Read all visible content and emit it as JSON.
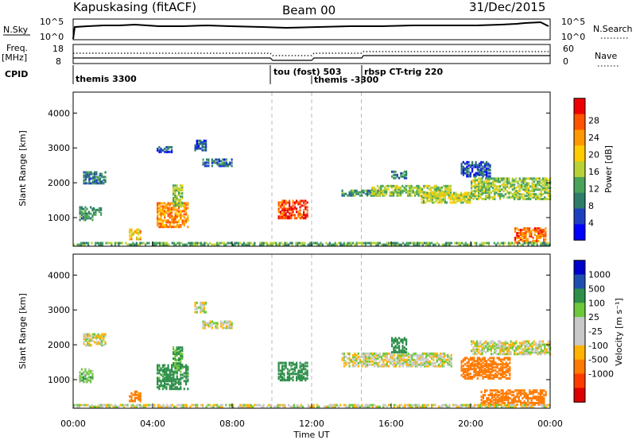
{
  "header": {
    "station": "Kapuskasing (fitACF)",
    "beam": "Beam 00",
    "date": "31/Dec/2015"
  },
  "panel_labels": {
    "nsky": "N.Sky",
    "nsearch": "N.Search",
    "freq_top": "Freq.",
    "freq_unit": "[MHz]",
    "nave": "Nave",
    "cpid": "CPID"
  },
  "top_axes": {
    "nsky_left_ticks": [
      "10^5",
      "10^0"
    ],
    "nsearch_right_ticks": [
      "10^5",
      "10^0"
    ],
    "freq_left_ticks": [
      "18",
      "8"
    ],
    "nave_right_ticks": [
      "60",
      "0"
    ]
  },
  "cpid_segments": [
    {
      "label": "themis 3300",
      "start_hour": 0.0
    },
    {
      "label": "tou (fost) 503",
      "start_hour": 10.0
    },
    {
      "label": "themis -3300",
      "start_hour": 12.0
    },
    {
      "label": "rbsp CT-trig 220",
      "start_hour": 14.5
    }
  ],
  "colors": {
    "power_scale": [
      "#0000ff",
      "#1e3fbf",
      "#2e7d6a",
      "#4aa35a",
      "#b8d236",
      "#ffcc00",
      "#ff9900",
      "#ff5500",
      "#ee0000"
    ],
    "velocity_scale": [
      "#0000cc",
      "#1e4fb0",
      "#2e8f4a",
      "#6cc83a",
      "#c8c8c8",
      "#c8c8c8",
      "#ffb300",
      "#ff7a00",
      "#ff3a00",
      "#dd0000"
    ]
  },
  "chart_data": [
    {
      "type": "heatmap",
      "name": "power",
      "xlabel": "Time UT",
      "ylabel": "Slant Range [km]",
      "x_ticks": [
        "00:00",
        "04:00",
        "08:00",
        "12:00",
        "16:00",
        "20:00",
        "00:00"
      ],
      "xlim": [
        0,
        24
      ],
      "y_ticks": [
        1000,
        2000,
        3000,
        4000
      ],
      "ylim": [
        180,
        4600
      ],
      "colorbar": {
        "label": "Power [dB]",
        "ticks": [
          "4",
          "8",
          "12",
          "16",
          "20",
          "24",
          "28"
        ],
        "range": [
          0,
          30
        ]
      },
      "regions": [
        {
          "t0": 0.5,
          "t1": 1.6,
          "r0": 1950,
          "r1": 2300,
          "level": 8
        },
        {
          "t0": 0.3,
          "t1": 1.0,
          "r0": 900,
          "r1": 1300,
          "level": 10
        },
        {
          "t0": 1.0,
          "t1": 1.4,
          "r0": 1050,
          "r1": 1250,
          "level": 9
        },
        {
          "t0": 2.8,
          "t1": 3.4,
          "r0": 350,
          "r1": 650,
          "level": 20
        },
        {
          "t0": 4.2,
          "t1": 5.8,
          "r0": 700,
          "r1": 1400,
          "level": 22
        },
        {
          "t0": 5.0,
          "t1": 5.5,
          "r0": 1300,
          "r1": 1900,
          "level": 14
        },
        {
          "t0": 6.1,
          "t1": 6.7,
          "r0": 2900,
          "r1": 3200,
          "level": 6
        },
        {
          "t0": 6.5,
          "t1": 8.0,
          "r0": 2450,
          "r1": 2650,
          "level": 7
        },
        {
          "t0": 4.2,
          "t1": 5.0,
          "r0": 2850,
          "r1": 3000,
          "level": 6
        },
        {
          "t0": 10.3,
          "t1": 11.8,
          "r0": 950,
          "r1": 1450,
          "level": 26
        },
        {
          "t0": 13.5,
          "t1": 15.5,
          "r0": 1600,
          "r1": 1750,
          "level": 10
        },
        {
          "t0": 15.0,
          "t1": 19.0,
          "r0": 1600,
          "r1": 1900,
          "level": 14
        },
        {
          "t0": 17.5,
          "t1": 20.0,
          "r0": 1400,
          "r1": 1700,
          "level": 16
        },
        {
          "t0": 20.0,
          "t1": 24.0,
          "r0": 1500,
          "r1": 2100,
          "level": 14
        },
        {
          "t0": 22.2,
          "t1": 23.8,
          "r0": 250,
          "r1": 700,
          "level": 24
        },
        {
          "t0": 19.5,
          "t1": 21.0,
          "r0": 2150,
          "r1": 2600,
          "level": 6
        },
        {
          "t0": 16.0,
          "t1": 16.8,
          "r0": 2100,
          "r1": 2300,
          "level": 8
        },
        {
          "t0": 0.0,
          "t1": 24.0,
          "r0": 190,
          "r1": 280,
          "level": 12
        }
      ]
    },
    {
      "type": "heatmap",
      "name": "velocity",
      "xlabel": "Time UT",
      "ylabel": "Slant Range [km]",
      "x_ticks": [
        "00:00",
        "04:00",
        "08:00",
        "12:00",
        "16:00",
        "20:00",
        "00:00"
      ],
      "xlim": [
        0,
        24
      ],
      "y_ticks": [
        1000,
        2000,
        3000,
        4000
      ],
      "ylim": [
        180,
        4600
      ],
      "colorbar": {
        "label": "Velocity [m s⁻¹]",
        "ticks": [
          "1000",
          "500",
          "100",
          "25",
          "-25",
          "-100",
          "-500",
          "-1000"
        ],
        "range": [
          -1200,
          1200
        ]
      },
      "regions": [
        {
          "t0": 0.5,
          "t1": 1.6,
          "r0": 1950,
          "r1": 2300,
          "level": 0
        },
        {
          "t0": 0.3,
          "t1": 1.0,
          "r0": 900,
          "r1": 1300,
          "level": 60
        },
        {
          "t0": 2.8,
          "t1": 3.4,
          "r0": 350,
          "r1": 650,
          "level": -150
        },
        {
          "t0": 4.2,
          "t1": 5.8,
          "r0": 700,
          "r1": 1400,
          "level": 150
        },
        {
          "t0": 5.0,
          "t1": 5.5,
          "r0": 1300,
          "r1": 1900,
          "level": 120
        },
        {
          "t0": 6.5,
          "t1": 8.0,
          "r0": 2450,
          "r1": 2650,
          "level": 0
        },
        {
          "t0": 6.1,
          "t1": 6.7,
          "r0": 2900,
          "r1": 3200,
          "level": 0
        },
        {
          "t0": 10.3,
          "t1": 11.8,
          "r0": 950,
          "r1": 1450,
          "level": 200
        },
        {
          "t0": 13.5,
          "t1": 19.0,
          "r0": 1350,
          "r1": 1750,
          "level": 0
        },
        {
          "t0": 16.0,
          "t1": 16.8,
          "r0": 1750,
          "r1": 2200,
          "level": 400
        },
        {
          "t0": 19.5,
          "t1": 22.0,
          "r0": 1000,
          "r1": 1600,
          "level": -300
        },
        {
          "t0": 20.0,
          "t1": 24.0,
          "r0": 1700,
          "r1": 2100,
          "level": 0
        },
        {
          "t0": 20.5,
          "t1": 23.8,
          "r0": 250,
          "r1": 700,
          "level": -300
        },
        {
          "t0": 0.0,
          "t1": 24.0,
          "r0": 190,
          "r1": 280,
          "level": 0
        }
      ]
    }
  ]
}
